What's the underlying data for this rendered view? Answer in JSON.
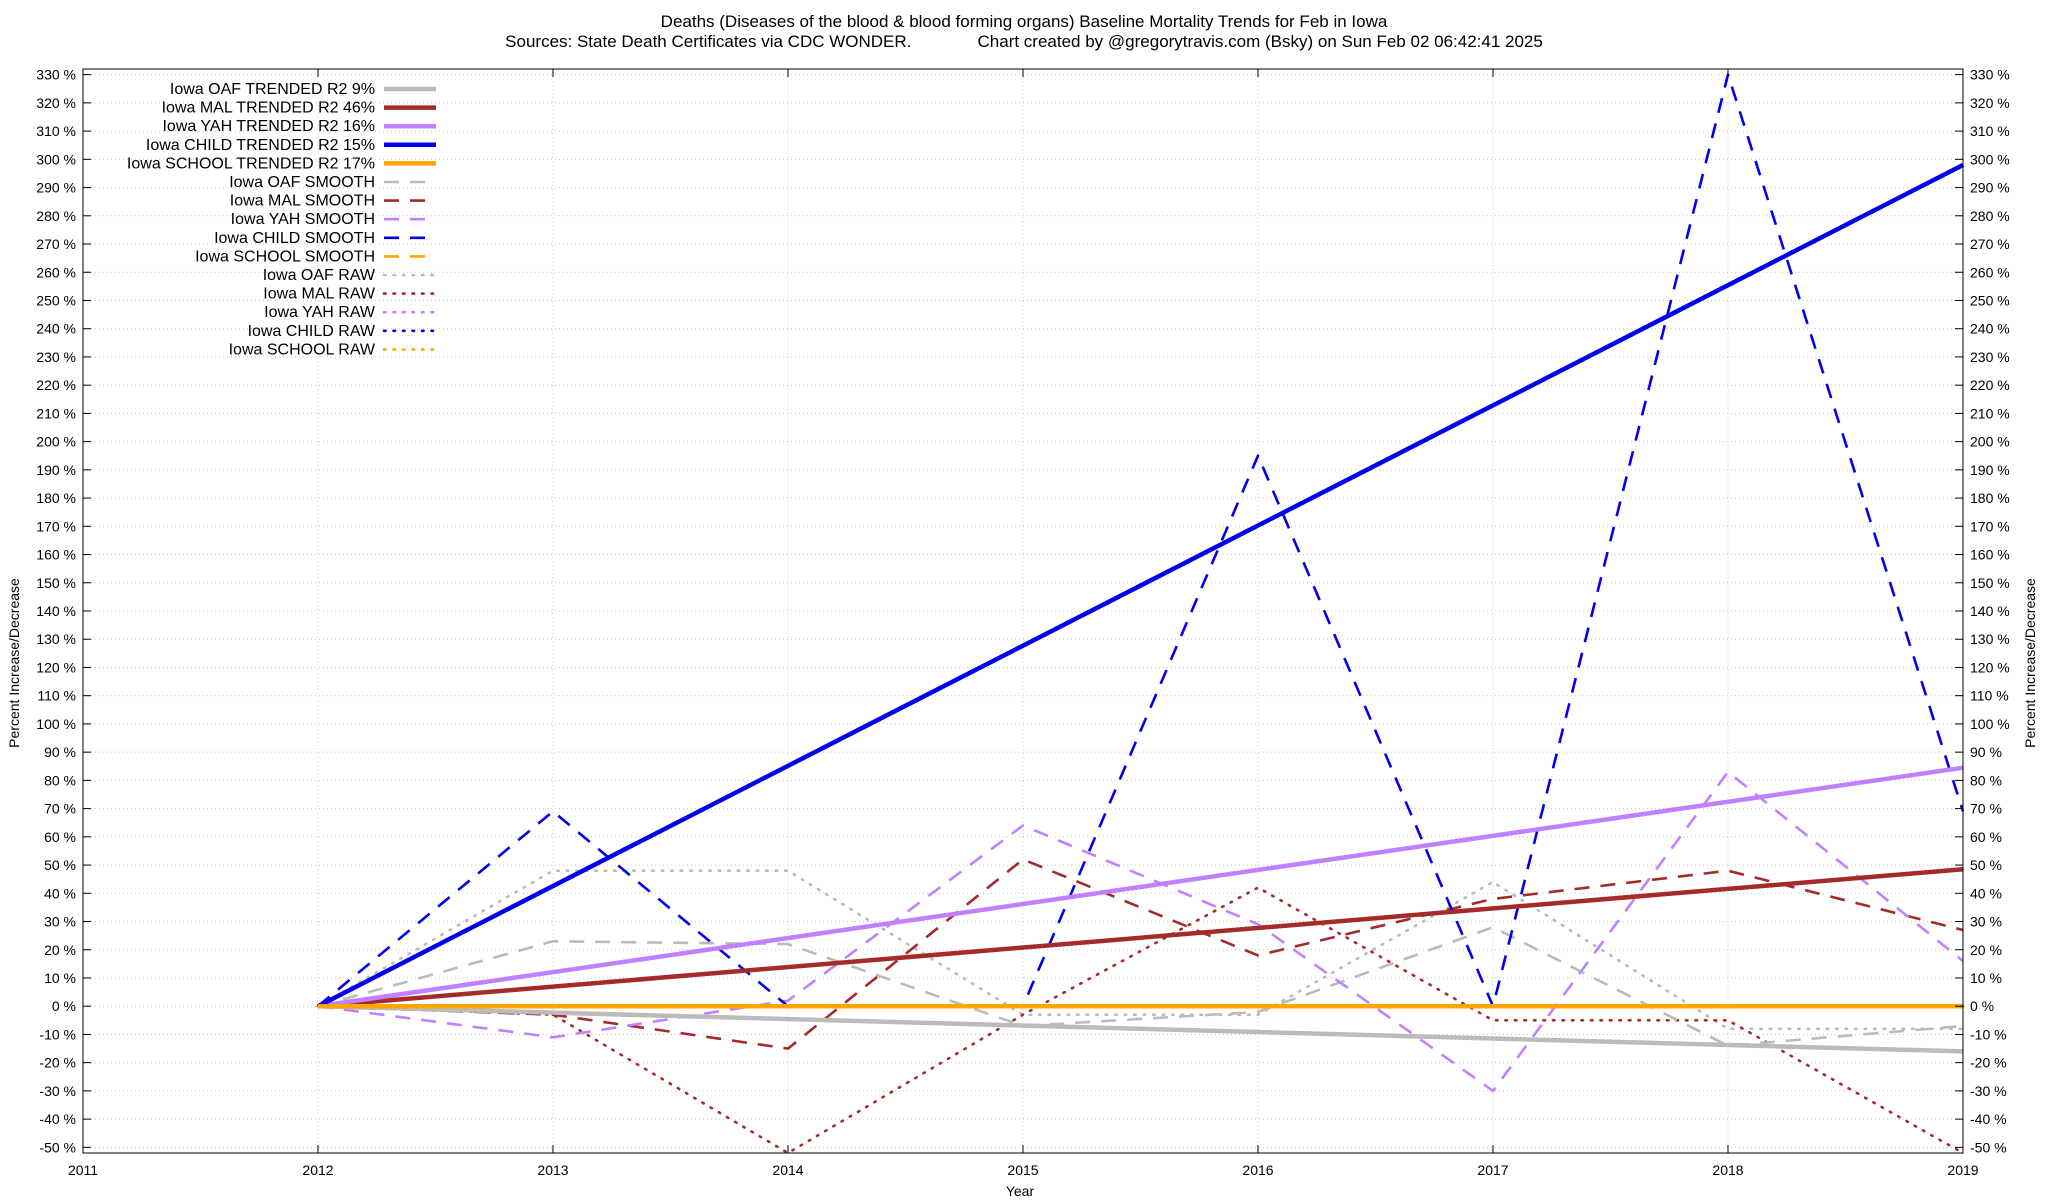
{
  "chart_data": {
    "type": "line",
    "title": "Deaths (Diseases of the blood & blood forming organs)  Baseline Mortality Trends for Feb in Iowa",
    "subtitle": "Sources: State Death Certificates via CDC WONDER.              Chart created by @gregorytravis.com (Bsky) on Sun Feb 02 06:42:41 2025",
    "xlabel": "Year",
    "ylabel": "Percent Increase/Decrease",
    "y2label": "Percent Increase/Decrease",
    "xlim": [
      2011,
      2019
    ],
    "ylim": [
      -52,
      332
    ],
    "x_ticks": [
      2011,
      2012,
      2013,
      2014,
      2015,
      2016,
      2017,
      2018,
      2019
    ],
    "y_ticks": [
      -50,
      -40,
      -30,
      -20,
      -10,
      0,
      10,
      20,
      30,
      40,
      50,
      60,
      70,
      80,
      90,
      100,
      110,
      120,
      130,
      140,
      150,
      160,
      170,
      180,
      190,
      200,
      210,
      220,
      230,
      240,
      250,
      260,
      270,
      280,
      290,
      300,
      310,
      320,
      330
    ],
    "y_tick_suffix": " %",
    "grid": true,
    "legend_position": "top-left",
    "series": [
      {
        "name": "Iowa OAF TRENDED R2  9%",
        "style": "solid",
        "color": "#bbbbbb",
        "x": [
          2012,
          2019
        ],
        "y": [
          0,
          -16
        ]
      },
      {
        "name": "Iowa MAL TRENDED R2  46%",
        "style": "solid",
        "color": "#a52a2a",
        "x": [
          2012,
          2019
        ],
        "y": [
          0,
          48.5
        ]
      },
      {
        "name": "Iowa YAH TRENDED R2  16%",
        "style": "solid",
        "color": "#c080ff",
        "x": [
          2012,
          2019
        ],
        "y": [
          0,
          84.5
        ]
      },
      {
        "name": "Iowa CHILD TRENDED R2  15%",
        "style": "solid",
        "color": "#0000ee",
        "x": [
          2012,
          2019
        ],
        "y": [
          0,
          298
        ]
      },
      {
        "name": "Iowa SCHOOL TRENDED R2  17%",
        "style": "solid",
        "color": "#ffa500",
        "x": [
          2012,
          2019
        ],
        "y": [
          0,
          0
        ]
      },
      {
        "name": "Iowa OAF SMOOTH",
        "style": "dashed",
        "color": "#bbbbbb",
        "x": [
          2012,
          2013,
          2014,
          2015,
          2016,
          2017,
          2018,
          2019
        ],
        "y": [
          0,
          23,
          22,
          -7,
          -2,
          28,
          -14,
          -7
        ]
      },
      {
        "name": "Iowa MAL SMOOTH",
        "style": "dashed",
        "color": "#a52a2a",
        "x": [
          2012,
          2013,
          2014,
          2015,
          2016,
          2017,
          2018,
          2019
        ],
        "y": [
          0,
          -3,
          -15,
          52,
          18,
          38,
          48,
          27
        ]
      },
      {
        "name": "Iowa YAH SMOOTH",
        "style": "dashed",
        "color": "#c080ff",
        "x": [
          2012,
          2013,
          2014,
          2015,
          2016,
          2017,
          2018,
          2019
        ],
        "y": [
          0,
          -11,
          2,
          64,
          29,
          -30,
          83,
          16
        ]
      },
      {
        "name": "Iowa CHILD SMOOTH",
        "style": "dashed",
        "color": "#0000ee",
        "x": [
          2012,
          2013,
          2014,
          2015,
          2016,
          2017,
          2018,
          2019
        ],
        "y": [
          0,
          69,
          0,
          0,
          195,
          0,
          330,
          69
        ]
      },
      {
        "name": "Iowa SCHOOL SMOOTH",
        "style": "dashed",
        "color": "#ffa500",
        "x": [
          2012,
          2019
        ],
        "y": [
          0,
          0
        ]
      },
      {
        "name": "Iowa OAF RAW",
        "style": "dotted",
        "color": "#bbbbbb",
        "x": [
          2012,
          2013,
          2014,
          2015,
          2016,
          2017,
          2018,
          2019
        ],
        "y": [
          0,
          48,
          48,
          -3,
          -3,
          44,
          -8,
          -8
        ]
      },
      {
        "name": "Iowa MAL RAW",
        "style": "dotted",
        "color": "#a52a2a",
        "x": [
          2012,
          2013,
          2014,
          2015,
          2016,
          2017,
          2018,
          2019
        ],
        "y": [
          0,
          -3,
          -52,
          -3,
          42,
          -5,
          -5,
          -52
        ]
      },
      {
        "name": "Iowa YAH RAW",
        "style": "dotted",
        "color": "#c080ff",
        "x": [
          2012,
          2019
        ],
        "y": [
          0,
          0
        ]
      },
      {
        "name": "Iowa CHILD RAW",
        "style": "dotted",
        "color": "#0000ee",
        "x": [
          2012,
          2019
        ],
        "y": [
          0,
          0
        ]
      },
      {
        "name": "Iowa SCHOOL RAW",
        "style": "dotted",
        "color": "#ffa500",
        "x": [
          2012,
          2019
        ],
        "y": [
          0,
          0
        ]
      }
    ]
  }
}
